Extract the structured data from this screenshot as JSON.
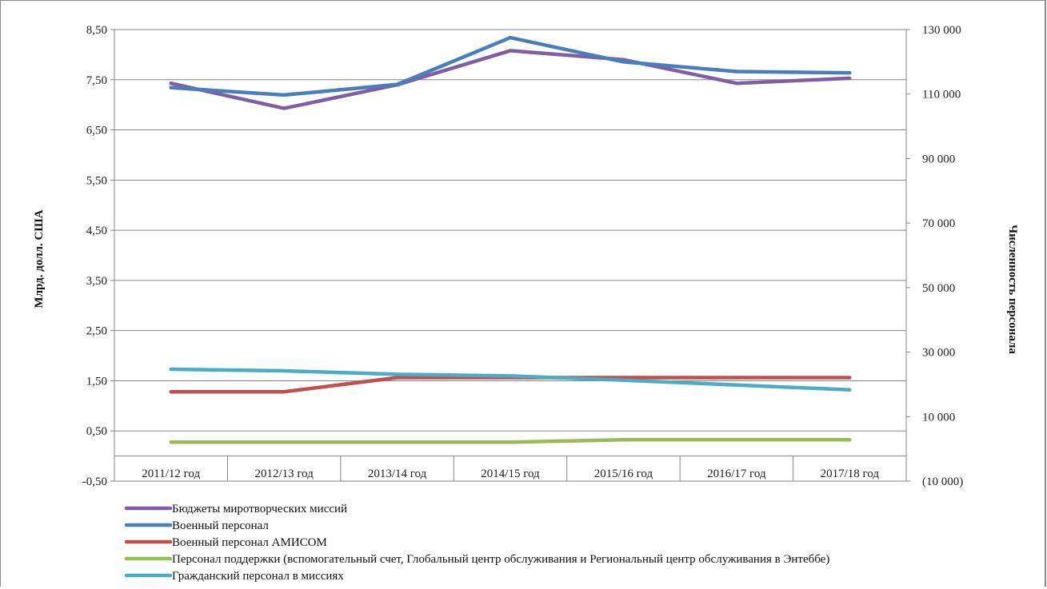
{
  "chart_data": {
    "type": "line",
    "categories": [
      "2011/12 год",
      "2012/13 год",
      "2013/14 год",
      "2014/15 год",
      "2015/16 год",
      "2016/17 год",
      "2017/18  год"
    ],
    "ylabel_left": "Млрд. долл. США",
    "ylabel_right": "Численность персонала",
    "ylim_left": [
      -0.5,
      8.5
    ],
    "ylim_right": [
      -10000,
      130000
    ],
    "yticks_left": [
      "8,50",
      "7,50",
      "6,50",
      "5,50",
      "4,50",
      "3,50",
      "2,50",
      "1,50",
      "0,50",
      "-0,50"
    ],
    "yticks_right": [
      "130 000",
      "110 000",
      "90 000",
      "70 000",
      "50 000",
      "30 000",
      "10 000",
      "(10 000)"
    ],
    "grid": true,
    "legend_position": "bottom-left",
    "series": [
      {
        "name": "Бюджеты миротворческих миссий",
        "axis": "left",
        "color": "#7f5fa3",
        "values": [
          7.43,
          6.93,
          7.4,
          8.08,
          7.9,
          7.43,
          7.53
        ]
      },
      {
        "name": "Военный персонал",
        "axis": "right",
        "color": "#4a7ebb",
        "values": [
          112000,
          109700,
          113000,
          127500,
          120000,
          117000,
          116600
        ]
      },
      {
        "name": "Военный персонал АМИСОМ",
        "axis": "right",
        "color": "#c0504d",
        "values": [
          17700,
          17700,
          22100,
          22100,
          22100,
          22100,
          22100
        ]
      },
      {
        "name": "Персонал поддержки (вспомогательный счет, Глобальный центр обслуживания и Региональный центр обслуживания в Энтеббе)",
        "axis": "right",
        "color": "#9bbb59",
        "values": [
          2100,
          2100,
          2100,
          2100,
          2800,
          2800,
          2800
        ]
      },
      {
        "name": "Гражданский персонал в миссиях",
        "axis": "right",
        "color": "#4bacc6",
        "values": [
          24700,
          24200,
          23100,
          22600,
          21300,
          19800,
          18300
        ]
      }
    ]
  }
}
